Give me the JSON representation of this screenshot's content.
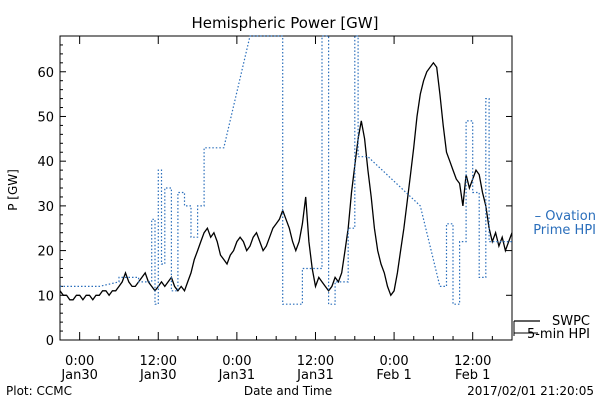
{
  "chart_data": {
    "type": "line",
    "title": "Hemispheric Power [GW]",
    "xlabel": "Date and Time",
    "ylabel": "P [GW]",
    "ylim": [
      0,
      68
    ],
    "yticks": [
      0,
      10,
      20,
      30,
      40,
      50,
      60
    ],
    "xlim": [
      -3,
      66
    ],
    "x_units": "hours since 2017-01-30 00:00",
    "xticks": [
      {
        "x": 0,
        "line1": "0:00",
        "line2": "Jan30"
      },
      {
        "x": 12,
        "line1": "12:00",
        "line2": "Jan30"
      },
      {
        "x": 24,
        "line1": "0:00",
        "line2": "Jan31"
      },
      {
        "x": 36,
        "line1": "12:00",
        "line2": "Jan31"
      },
      {
        "x": 48,
        "line1": "0:00",
        "line2": "Feb 1"
      },
      {
        "x": 60,
        "line1": "12:00",
        "line2": "Feb 1"
      }
    ],
    "grid": false,
    "legend": [
      {
        "label_lines": [
          "– Ovation",
          "Prime HPI"
        ],
        "color": "#2a6ebb",
        "style": "dashed"
      },
      {
        "label_lines": [
          "SWPC",
          "5-min HPI"
        ],
        "color": "#000000",
        "style": "solid"
      }
    ],
    "series": [
      {
        "name": "SWPC 5-min HPI",
        "color": "#000000",
        "style": "solid",
        "points": [
          [
            -3,
            11
          ],
          [
            -2.5,
            10
          ],
          [
            -2,
            10
          ],
          [
            -1.5,
            9
          ],
          [
            -1,
            9
          ],
          [
            -0.5,
            10
          ],
          [
            0,
            10
          ],
          [
            0.5,
            9
          ],
          [
            1,
            10
          ],
          [
            1.5,
            10
          ],
          [
            2,
            9
          ],
          [
            2.5,
            10
          ],
          [
            3,
            10
          ],
          [
            3.5,
            11
          ],
          [
            4,
            11
          ],
          [
            4.5,
            10
          ],
          [
            5,
            11
          ],
          [
            5.5,
            11
          ],
          [
            6,
            12
          ],
          [
            6.5,
            13
          ],
          [
            7,
            15
          ],
          [
            7.5,
            13
          ],
          [
            8,
            12
          ],
          [
            8.5,
            12
          ],
          [
            9,
            13
          ],
          [
            9.5,
            14
          ],
          [
            10,
            15
          ],
          [
            10.5,
            13
          ],
          [
            11,
            12
          ],
          [
            11.5,
            11
          ],
          [
            12,
            12
          ],
          [
            12.5,
            13
          ],
          [
            13,
            12
          ],
          [
            13.5,
            13
          ],
          [
            14,
            14
          ],
          [
            14.5,
            12
          ],
          [
            15,
            11
          ],
          [
            15.5,
            12
          ],
          [
            16,
            11
          ],
          [
            16.5,
            13
          ],
          [
            17,
            15
          ],
          [
            17.5,
            18
          ],
          [
            18,
            20
          ],
          [
            18.5,
            22
          ],
          [
            19,
            24
          ],
          [
            19.5,
            25
          ],
          [
            20,
            23
          ],
          [
            20.5,
            24
          ],
          [
            21,
            22
          ],
          [
            21.5,
            19
          ],
          [
            22,
            18
          ],
          [
            22.5,
            17
          ],
          [
            23,
            19
          ],
          [
            23.5,
            20
          ],
          [
            24,
            22
          ],
          [
            24.5,
            23
          ],
          [
            25,
            22
          ],
          [
            25.5,
            20
          ],
          [
            26,
            21
          ],
          [
            26.5,
            23
          ],
          [
            27,
            24
          ],
          [
            27.5,
            22
          ],
          [
            28,
            20
          ],
          [
            28.5,
            21
          ],
          [
            29,
            23
          ],
          [
            29.5,
            25
          ],
          [
            30,
            26
          ],
          [
            30.5,
            27
          ],
          [
            31,
            29
          ],
          [
            31.5,
            27
          ],
          [
            32,
            25
          ],
          [
            32.5,
            22
          ],
          [
            33,
            20
          ],
          [
            33.5,
            22
          ],
          [
            34,
            26
          ],
          [
            34.5,
            32
          ],
          [
            35,
            22
          ],
          [
            35.5,
            16
          ],
          [
            36,
            12
          ],
          [
            36.5,
            14
          ],
          [
            37,
            13
          ],
          [
            37.5,
            12
          ],
          [
            38,
            11
          ],
          [
            38.5,
            12
          ],
          [
            39,
            14
          ],
          [
            39.5,
            13
          ],
          [
            40,
            15
          ],
          [
            40.5,
            20
          ],
          [
            41,
            25
          ],
          [
            41.5,
            33
          ],
          [
            42,
            39
          ],
          [
            42.5,
            45
          ],
          [
            43,
            49
          ],
          [
            43.5,
            45
          ],
          [
            44,
            38
          ],
          [
            44.5,
            32
          ],
          [
            45,
            25
          ],
          [
            45.5,
            20
          ],
          [
            46,
            17
          ],
          [
            46.5,
            15
          ],
          [
            47,
            12
          ],
          [
            47.5,
            10
          ],
          [
            48,
            11
          ],
          [
            48.5,
            15
          ],
          [
            49,
            20
          ],
          [
            49.5,
            25
          ],
          [
            50,
            31
          ],
          [
            50.5,
            37
          ],
          [
            51,
            43
          ],
          [
            51.5,
            50
          ],
          [
            52,
            55
          ],
          [
            52.5,
            58
          ],
          [
            53,
            60
          ],
          [
            53.5,
            61
          ],
          [
            54,
            62
          ],
          [
            54.5,
            61
          ],
          [
            55,
            55
          ],
          [
            55.5,
            48
          ],
          [
            56,
            42
          ],
          [
            56.5,
            40
          ],
          [
            57,
            38
          ],
          [
            57.5,
            36
          ],
          [
            58,
            35
          ],
          [
            58.5,
            30
          ],
          [
            59,
            37
          ],
          [
            59.5,
            34
          ],
          [
            60,
            36
          ],
          [
            60.5,
            38
          ],
          [
            61,
            37
          ],
          [
            61.5,
            33
          ],
          [
            62,
            30
          ],
          [
            62.5,
            25
          ],
          [
            63,
            22
          ],
          [
            63.5,
            24
          ],
          [
            64,
            21
          ],
          [
            64.5,
            23
          ],
          [
            65,
            20
          ],
          [
            65.5,
            22
          ],
          [
            66,
            24
          ]
        ]
      },
      {
        "name": "Ovation Prime HPI",
        "color": "#2a6ebb",
        "style": "dashed",
        "points": [
          [
            -3,
            12
          ],
          [
            3,
            12
          ],
          [
            3,
            12
          ],
          [
            6,
            13
          ],
          [
            6,
            14
          ],
          [
            9,
            14
          ],
          [
            9,
            13
          ],
          [
            11,
            13
          ],
          [
            11,
            27
          ],
          [
            11.5,
            27
          ],
          [
            11.5,
            8
          ],
          [
            12,
            8
          ],
          [
            12,
            38
          ],
          [
            12.5,
            38
          ],
          [
            12.5,
            17
          ],
          [
            13,
            17
          ],
          [
            13,
            34
          ],
          [
            14,
            34
          ],
          [
            14,
            11
          ],
          [
            15,
            11
          ],
          [
            15,
            33
          ],
          [
            16,
            33
          ],
          [
            16,
            30
          ],
          [
            17,
            30
          ],
          [
            17,
            23
          ],
          [
            18,
            23
          ],
          [
            18,
            30
          ],
          [
            19,
            30
          ],
          [
            19,
            43
          ],
          [
            22,
            43
          ],
          [
            22,
            43
          ],
          [
            26,
            68
          ],
          [
            31,
            68
          ],
          [
            31,
            8
          ],
          [
            34,
            8
          ],
          [
            34,
            16
          ],
          [
            37,
            16
          ],
          [
            37,
            68
          ],
          [
            38,
            68
          ],
          [
            38,
            8
          ],
          [
            39,
            8
          ],
          [
            39,
            13
          ],
          [
            41,
            13
          ],
          [
            41,
            25
          ],
          [
            42,
            25
          ],
          [
            42,
            68
          ],
          [
            42.5,
            68
          ],
          [
            42.5,
            41
          ],
          [
            44,
            41
          ],
          [
            52,
            30
          ],
          [
            55,
            12
          ],
          [
            56,
            12
          ],
          [
            56,
            26
          ],
          [
            57,
            26
          ],
          [
            57,
            8
          ],
          [
            58,
            8
          ],
          [
            58,
            22
          ],
          [
            59,
            22
          ],
          [
            59,
            49
          ],
          [
            60,
            49
          ],
          [
            60,
            33
          ],
          [
            61,
            33
          ],
          [
            61,
            14
          ],
          [
            62,
            14
          ],
          [
            62,
            54
          ],
          [
            62.5,
            54
          ],
          [
            62.5,
            22
          ],
          [
            66,
            22
          ]
        ]
      }
    ],
    "footer": {
      "left": "Plot: CCMC",
      "right": "2017/02/01 21:20:05"
    }
  }
}
